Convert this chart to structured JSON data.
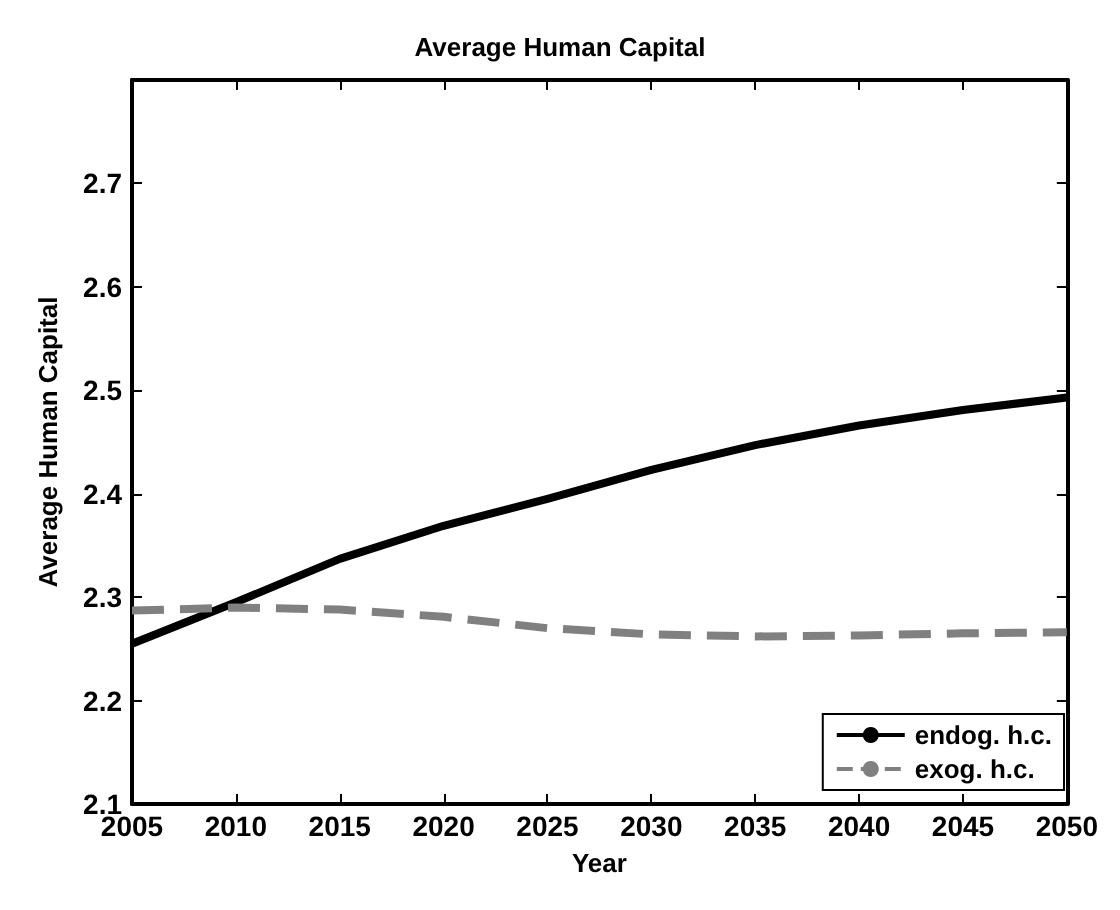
{
  "chart_data": {
    "type": "line",
    "title": "Average Human Capital",
    "xlabel": "Year",
    "ylabel": "Average Human Capital",
    "x": [
      2005,
      2010,
      2015,
      2020,
      2025,
      2030,
      2035,
      2040,
      2045,
      2050
    ],
    "series": [
      {
        "name": "endog. h.c.",
        "color": "#000000",
        "line_style": "solid",
        "values": [
          2.255,
          2.295,
          2.337,
          2.369,
          2.395,
          2.423,
          2.447,
          2.466,
          2.481,
          2.493
        ]
      },
      {
        "name": "exog. h.c.",
        "color": "#808080",
        "line_style": "dashed",
        "values": [
          2.287,
          2.29,
          2.288,
          2.281,
          2.27,
          2.264,
          2.262,
          2.263,
          2.265,
          2.266
        ]
      }
    ],
    "xlim": [
      2005,
      2050
    ],
    "xticks": [
      2005,
      2010,
      2015,
      2020,
      2025,
      2030,
      2035,
      2040,
      2045,
      2050
    ],
    "ylim": [
      2.1,
      2.8
    ],
    "yticks": [
      2.1,
      2.2,
      2.3,
      2.4,
      2.5,
      2.6,
      2.7
    ],
    "grid": false,
    "legend": "bottom right",
    "marker": "none"
  }
}
